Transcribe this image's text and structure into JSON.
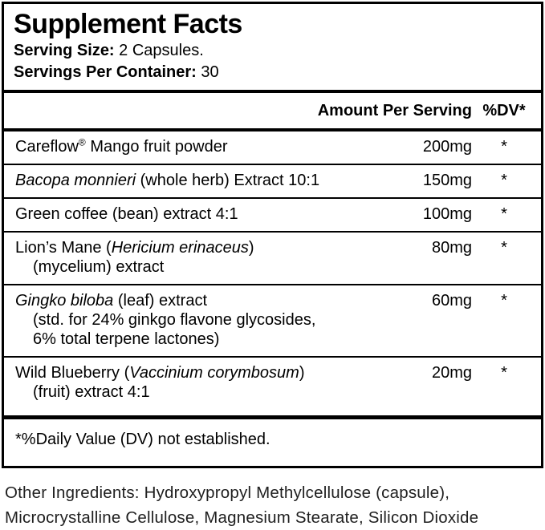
{
  "panel": {
    "title": "Supplement Facts",
    "serving_size": {
      "label": "Serving Size:",
      "value": "2 Capsules."
    },
    "servings_per_container": {
      "label": "Servings Per Container:",
      "value": "30"
    },
    "columns": {
      "amount": "Amount Per Serving",
      "dv": "%DV*"
    },
    "rows": [
      {
        "lines": [
          [
            {
              "t": "Careflow"
            },
            {
              "t": "®",
              "sup": true
            },
            {
              "t": " Mango fruit powder"
            }
          ]
        ],
        "amount": "200mg",
        "dv": "*"
      },
      {
        "lines": [
          [
            {
              "t": "Bacopa monnieri",
              "i": true
            },
            {
              "t": " (whole herb) Extract 10:1"
            }
          ]
        ],
        "amount": "150mg",
        "dv": "*"
      },
      {
        "lines": [
          [
            {
              "t": "Green coffee (bean) extract 4:1"
            }
          ]
        ],
        "amount": "100mg",
        "dv": "*"
      },
      {
        "lines": [
          [
            {
              "t": "Lion’s Mane ("
            },
            {
              "t": "Hericium erinaceus",
              "i": true
            },
            {
              "t": ")"
            }
          ],
          [
            {
              "t": "(mycelium) extract"
            }
          ]
        ],
        "amount": "80mg",
        "dv": "*"
      },
      {
        "lines": [
          [
            {
              "t": "Gingko biloba",
              "i": true
            },
            {
              "t": " (leaf) extract"
            }
          ],
          [
            {
              "t": "(std. for 24% ginkgo flavone glycosides,"
            }
          ],
          [
            {
              "t": "6% total terpene lactones)"
            }
          ]
        ],
        "amount": "60mg",
        "dv": "*"
      },
      {
        "lines": [
          [
            {
              "t": "Wild Blueberry ("
            },
            {
              "t": "Vaccinium corymbosum",
              "i": true
            },
            {
              "t": ")"
            }
          ],
          [
            {
              "t": "(fruit) extract 4:1"
            }
          ]
        ],
        "amount": "20mg",
        "dv": "*"
      }
    ],
    "footnote": "*%Daily Value (DV) not established."
  },
  "other_ingredients": {
    "lines": [
      "Other Ingredients: Hydroxypropyl Methylcellulose (capsule),",
      "Microcrystalline Cellulose, Magnesium Stearate, Silicon Dioxide"
    ]
  },
  "colors": {
    "background": "#ffffff",
    "border": "#000000",
    "text": "#000000"
  }
}
